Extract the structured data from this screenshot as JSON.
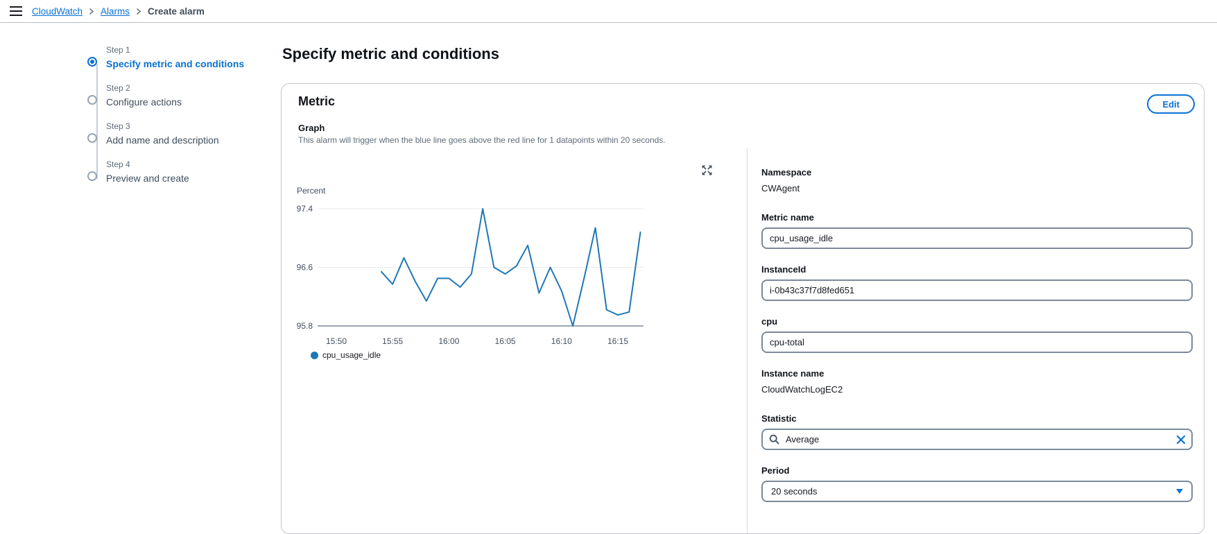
{
  "topbar": {
    "breadcrumb": [
      {
        "label": "CloudWatch"
      },
      {
        "label": "Alarms"
      },
      {
        "label": "Create alarm"
      }
    ]
  },
  "steps": {
    "items": [
      {
        "step": "Step 1",
        "title": "Specify metric and conditions",
        "active": true
      },
      {
        "step": "Step 2",
        "title": "Configure actions",
        "active": false
      },
      {
        "step": "Step 3",
        "title": "Add name and description",
        "active": false
      },
      {
        "step": "Step 4",
        "title": "Preview and create",
        "active": false
      }
    ]
  },
  "page": {
    "title": "Specify metric and conditions"
  },
  "metric_card": {
    "title": "Metric",
    "edit_button_label": "Edit",
    "graph_label": "Graph",
    "graph_description": "This alarm will trigger when the blue line goes above the red line for 1 datapoints within 20 seconds.",
    "fields": {
      "namespace_label": "Namespace",
      "namespace_value": "CWAgent",
      "metric_name_label": "Metric name",
      "metric_name_value": "cpu_usage_idle",
      "instance_id_label": "InstanceId",
      "instance_id_value": "i-0b43c37f7d8fed651",
      "cpu_label": "cpu",
      "cpu_value": "cpu-total",
      "instance_name_label": "Instance name",
      "instance_name_value": "CloudWatchLogEC2",
      "statistic_label": "Statistic",
      "statistic_value": "Average",
      "period_label": "Period",
      "period_value": "20 seconds"
    }
  },
  "chart_data": {
    "type": "line",
    "title": "",
    "xlabel": "",
    "ylabel": "Percent",
    "ylim": [
      95.8,
      97.4
    ],
    "y_ticks": [
      97.4,
      96.6,
      95.8
    ],
    "x_ticks": [
      "15:50",
      "15:55",
      "16:00",
      "16:05",
      "16:10",
      "16:15"
    ],
    "grid": true,
    "legend_position": "bottom",
    "series": [
      {
        "name": "cpu_usage_idle",
        "color": "#1f77b4",
        "x": [
          "15:54",
          "15:55",
          "15:56",
          "15:57",
          "15:58",
          "15:59",
          "16:00",
          "16:01",
          "16:02",
          "16:03",
          "16:04",
          "16:05",
          "16:06",
          "16:07",
          "16:08",
          "16:09",
          "16:10",
          "16:11",
          "16:12",
          "16:13",
          "16:14",
          "16:15",
          "16:16",
          "16:17"
        ],
        "values": [
          96.54,
          96.37,
          96.73,
          96.41,
          96.14,
          96.45,
          96.45,
          96.33,
          96.51,
          97.4,
          96.6,
          96.51,
          96.62,
          96.9,
          96.25,
          96.6,
          96.28,
          95.8,
          96.45,
          97.14,
          96.02,
          95.95,
          95.99,
          97.08
        ]
      }
    ]
  },
  "colors": {
    "accent": "#0972d3",
    "chart_line": "#1f77b4",
    "text": "#0f141a",
    "muted": "#5f6b7a",
    "divider": "#b6bec9",
    "input_border": "#7d8998"
  }
}
